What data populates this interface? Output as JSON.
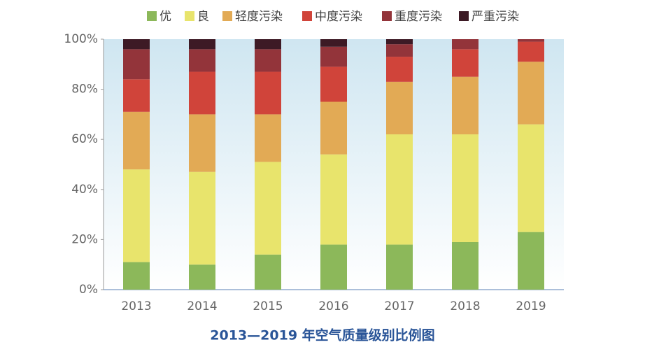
{
  "chart_data": {
    "type": "stacked_bar",
    "title": "2013—2019 年空气质量级别比例图",
    "categories": [
      "2013",
      "2014",
      "2015",
      "2016",
      "2017",
      "2018",
      "2019"
    ],
    "series": [
      {
        "name": "优",
        "color": "#8cb85a",
        "values": [
          11,
          10,
          14,
          18,
          18,
          19,
          23
        ]
      },
      {
        "name": "良",
        "color": "#e8e46c",
        "values": [
          37,
          37,
          37,
          36,
          44,
          43,
          43
        ]
      },
      {
        "name": "轻度污染",
        "color": "#e2aa55",
        "values": [
          23,
          23,
          19,
          21,
          21,
          23,
          25
        ]
      },
      {
        "name": "中度污染",
        "color": "#d0443a",
        "values": [
          13,
          17,
          17,
          14,
          10,
          11,
          8
        ]
      },
      {
        "name": "重度污染",
        "color": "#93343a",
        "values": [
          12,
          9,
          9,
          8,
          5,
          4,
          1
        ]
      },
      {
        "name": "严重污染",
        "color": "#3d1a25",
        "values": [
          4,
          4,
          4,
          3,
          2,
          0,
          0
        ]
      }
    ],
    "ylim": [
      0,
      100
    ],
    "yticks": [
      {
        "value": 0,
        "label": "0%"
      },
      {
        "value": 20,
        "label": "20%"
      },
      {
        "value": 40,
        "label": "40%"
      },
      {
        "value": 60,
        "label": "60%"
      },
      {
        "value": 80,
        "label": "80%"
      },
      {
        "value": 100,
        "label": "100%"
      }
    ]
  }
}
